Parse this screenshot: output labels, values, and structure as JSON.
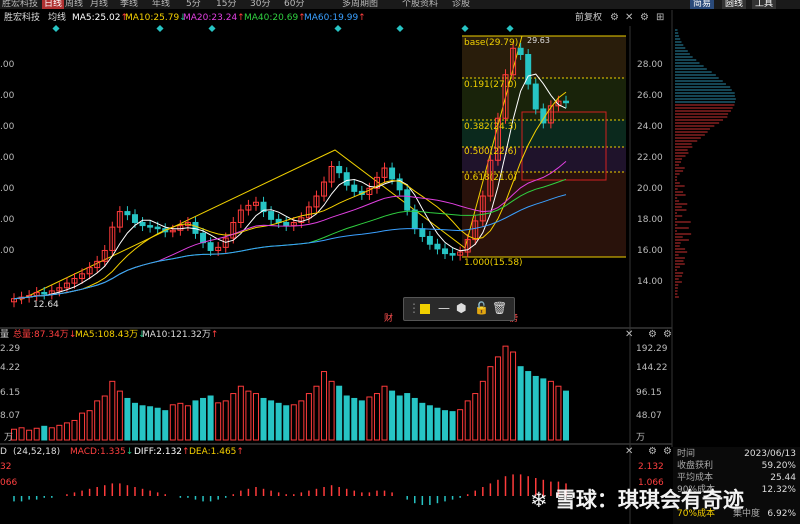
{
  "tabs": [
    "日线",
    "周线",
    "月线",
    "季线",
    "年线",
    "5分",
    "15分",
    "30分",
    "60分",
    "多周期图",
    "个股资料",
    "诊股"
  ],
  "tab_active": "日线",
  "right_tabs": [
    "简易",
    "圆线",
    "工具"
  ],
  "symbol": "胜宏科技",
  "avg_label": "均线",
  "ma": [
    {
      "label": "MA5:25.02",
      "arrow": "↑",
      "color": "#ffffff"
    },
    {
      "label": "MA10:25.79",
      "arrow": "↓",
      "color": "#f5d000"
    },
    {
      "label": "MA20:23.24",
      "arrow": "↑",
      "color": "#e040e0"
    },
    {
      "label": "MA40:20.69",
      "arrow": "↑",
      "color": "#30d040"
    },
    {
      "label": "MA60:19.99",
      "arrow": "↑",
      "color": "#3aa0ff"
    }
  ],
  "fuquan_label": "前复权",
  "price_axis": [
    "28.00",
    "26.00",
    "24.00",
    "22.00",
    "20.00",
    "18.00",
    "16.00",
    "14.00"
  ],
  "price_axis_left": [
    ".00",
    ".00",
    ".00",
    ".00",
    ".00",
    ".00",
    ".00"
  ],
  "fib": [
    {
      "label": "base(29.79)"
    },
    {
      "label": "0.191(27.0)"
    },
    {
      "label": "0.382(24.3)"
    },
    {
      "label": "0.500(22.6)"
    },
    {
      "label": "0.618(21.0)"
    },
    {
      "label": "1.000(15.58)"
    }
  ],
  "peak_label": "29.63",
  "low_label": "12.64",
  "markers": [
    "财",
    "傍"
  ],
  "volume": {
    "header_left": "量",
    "total": "总量:87.34万",
    "total_arrow": "↓",
    "ma5": "MA5:108.43万",
    "ma5_arrow": "↓",
    "ma10": "MA10:121.32万",
    "ma10_arrow": "↑",
    "axis": [
      "192.29",
      "144.22",
      "96.15",
      "48.07",
      "万"
    ],
    "axis_left": [
      "2.29",
      "4.22",
      "6.15",
      "8.07",
      "万"
    ]
  },
  "macd": {
    "header_left": "D",
    "params": "(24,52,18)",
    "macd": "MACD:1.335",
    "macd_arrow": "↓",
    "diff": "DIFF:2.132",
    "diff_arrow": "↑",
    "dea": "DEA:1.465",
    "dea_arrow": "↑",
    "axis": [
      "2.132",
      "1.066"
    ],
    "axis_left": [
      "32",
      "066"
    ]
  },
  "info": {
    "date_label": "时间",
    "date": "2023/06/13",
    "profit_label": "收盘获利",
    "profit": "59.20%",
    "avg_cost_label": "平均成本",
    "avg_cost": "25.44",
    "cost90_label": "90%成本",
    "cost90": "12.32%",
    "cost70_label": "70%成本",
    "concentration_label": "集中度",
    "concentration": "6.92%"
  },
  "watermark": "雪球：琪琪会有奇迹",
  "chart_data": {
    "type": "candlestick",
    "price_axis": [
      14,
      16,
      18,
      20,
      22,
      24,
      26,
      28
    ],
    "closes": [
      12.9,
      13.0,
      13.1,
      13.3,
      13.2,
      13.4,
      13.6,
      13.9,
      14.2,
      14.5,
      14.9,
      15.3,
      16.0,
      17.5,
      18.5,
      18.3,
      17.8,
      17.6,
      17.5,
      17.4,
      17.2,
      17.3,
      17.6,
      17.8,
      17.1,
      16.5,
      16.0,
      16.2,
      16.8,
      17.8,
      18.6,
      18.9,
      19.1,
      18.5,
      18.0,
      17.8,
      17.6,
      17.8,
      18.1,
      18.8,
      19.5,
      20.4,
      21.4,
      21.0,
      20.2,
      19.8,
      19.6,
      20.0,
      20.7,
      21.3,
      20.6,
      19.9,
      18.6,
      17.4,
      16.9,
      16.4,
      16.1,
      15.8,
      15.7,
      15.9,
      16.7,
      17.9,
      19.5,
      21.8,
      24.5,
      27.3,
      29.0,
      28.6,
      26.7,
      25.1,
      24.2,
      25.3,
      25.6,
      25.5
    ],
    "volume": [
      22,
      25,
      20,
      24,
      28,
      25,
      30,
      35,
      40,
      55,
      60,
      80,
      90,
      120,
      100,
      85,
      75,
      70,
      68,
      65,
      60,
      72,
      75,
      70,
      80,
      85,
      90,
      76,
      80,
      95,
      110,
      100,
      95,
      85,
      80,
      75,
      70,
      72,
      80,
      95,
      110,
      140,
      120,
      110,
      90,
      85,
      80,
      88,
      95,
      110,
      100,
      90,
      95,
      85,
      75,
      70,
      65,
      60,
      58,
      62,
      80,
      95,
      120,
      150,
      170,
      192,
      180,
      150,
      140,
      130,
      125,
      120,
      110,
      100
    ],
    "macd_hist": [
      -0.3,
      -0.3,
      -0.2,
      -0.2,
      -0.1,
      -0.1,
      0,
      0.1,
      0.2,
      0.3,
      0.4,
      0.5,
      0.6,
      0.7,
      0.7,
      0.6,
      0.5,
      0.4,
      0.3,
      0.2,
      0.1,
      0.0,
      -0.1,
      -0.1,
      -0.2,
      -0.3,
      -0.3,
      -0.2,
      -0.1,
      0.1,
      0.3,
      0.4,
      0.5,
      0.4,
      0.3,
      0.2,
      0.1,
      0.1,
      0.2,
      0.3,
      0.4,
      0.5,
      0.6,
      0.5,
      0.4,
      0.3,
      0.2,
      0.2,
      0.3,
      0.3,
      0.2,
      0.0,
      -0.2,
      -0.4,
      -0.5,
      -0.5,
      -0.4,
      -0.3,
      -0.2,
      -0.1,
      0.1,
      0.3,
      0.5,
      0.7,
      0.9,
      1.1,
      1.2,
      1.2,
      1.1,
      1.0,
      0.9,
      0.8,
      0.8,
      0.7
    ]
  }
}
